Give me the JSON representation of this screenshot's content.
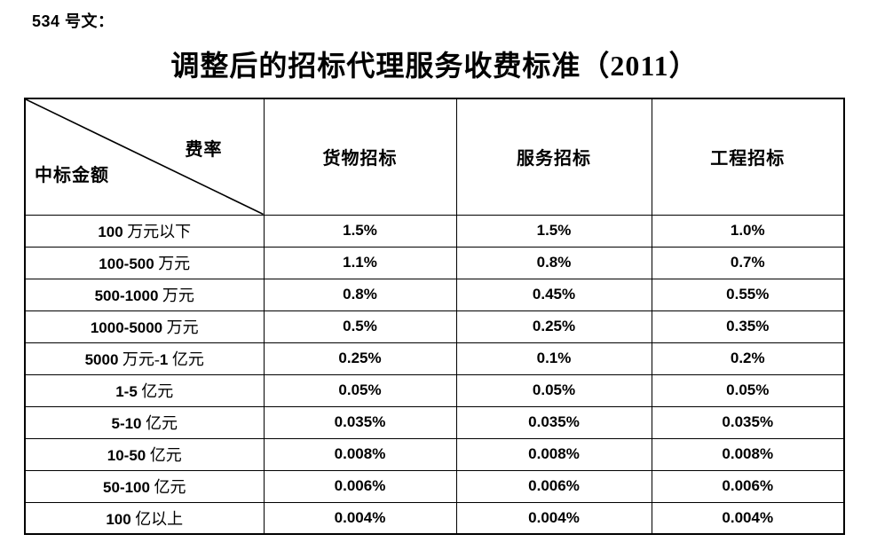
{
  "doc_label": "534 号文：",
  "title": "调整后的招标代理服务收费标准（2011）",
  "table": {
    "corner": {
      "top_right": "费率",
      "bottom_left": "中标金额"
    },
    "columns": [
      "货物招标",
      "服务招标",
      "工程招标"
    ],
    "rows": [
      {
        "label": "100 万元以下",
        "values": [
          "1.5%",
          "1.5%",
          "1.0%"
        ]
      },
      {
        "label": "100-500 万元",
        "values": [
          "1.1%",
          "0.8%",
          "0.7%"
        ]
      },
      {
        "label": "500-1000 万元",
        "values": [
          "0.8%",
          "0.45%",
          "0.55%"
        ]
      },
      {
        "label": "1000-5000 万元",
        "values": [
          "0.5%",
          "0.25%",
          "0.35%"
        ]
      },
      {
        "label": "5000 万元-1 亿元",
        "values": [
          "0.25%",
          "0.1%",
          "0.2%"
        ]
      },
      {
        "label": "1-5 亿元",
        "values": [
          "0.05%",
          "0.05%",
          "0.05%"
        ]
      },
      {
        "label": "5-10 亿元",
        "values": [
          "0.035%",
          "0.035%",
          "0.035%"
        ]
      },
      {
        "label": "10-50 亿元",
        "values": [
          "0.008%",
          "0.008%",
          "0.008%"
        ]
      },
      {
        "label": "50-100 亿元",
        "values": [
          "0.006%",
          "0.006%",
          "0.006%"
        ]
      },
      {
        "label": "100 亿以上",
        "values": [
          "0.004%",
          "0.004%",
          "0.004%"
        ]
      }
    ],
    "text_color": "#000000",
    "border_color": "#000000",
    "background_color": "#ffffff"
  }
}
